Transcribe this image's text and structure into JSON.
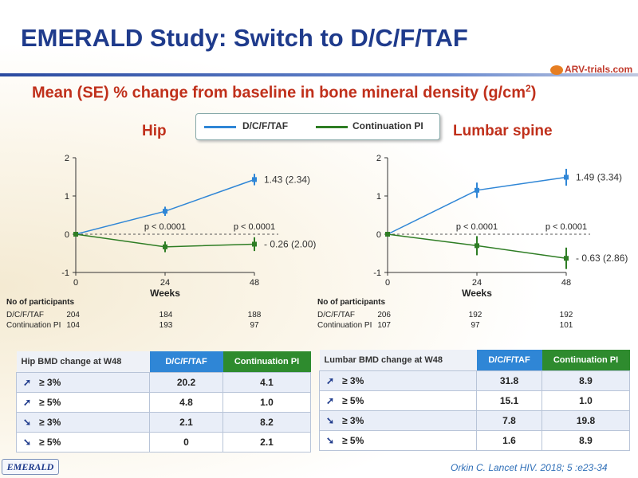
{
  "title": "EMERALD Study: Switch to D/C/F/TAF",
  "logo_text": "ARV-trials.com",
  "subtitle_main": "Mean (SE) % change from baseline in bone mineral density (g/cm",
  "subtitle_sup": "2",
  "subtitle_end": ")",
  "legend": {
    "series1": "D/C/F/TAF",
    "series2": "Continuation PI"
  },
  "colors": {
    "dcftaf": "#2f86d6",
    "pi": "#2e7d24",
    "accent": "#c0301b",
    "title": "#1f3b8c"
  },
  "chart_data": [
    {
      "type": "line",
      "title": "Hip",
      "xlabel": "Weeks",
      "x": [
        0,
        24,
        48
      ],
      "ylim": [
        -1,
        2
      ],
      "yticks": [
        "2",
        "1",
        "0",
        "-1"
      ],
      "xticks": [
        "0",
        "24",
        "48"
      ],
      "series": [
        {
          "name": "D/C/F/TAF",
          "values": [
            0,
            0.6,
            1.43
          ],
          "se": [
            0,
            0.12,
            0.15
          ],
          "end_label": "1.43 (2.34)"
        },
        {
          "name": "Continuation PI",
          "values": [
            0,
            -0.33,
            -0.26
          ],
          "se": [
            0,
            0.14,
            0.18
          ],
          "end_label": "- 0.26 (2.00)"
        }
      ],
      "pvalues": [
        {
          "label": "p < 0.0001",
          "week": 24
        },
        {
          "label": "p < 0.0001",
          "week": 48
        }
      ],
      "participants_title": "No of participants",
      "participants": [
        {
          "label": "D/C/F/TAF",
          "values": [
            "204",
            "184",
            "188"
          ]
        },
        {
          "label": "Continuation PI",
          "values": [
            "104",
            "193",
            "97"
          ]
        }
      ]
    },
    {
      "type": "line",
      "title": "Lumbar spine",
      "xlabel": "Weeks",
      "x": [
        0,
        24,
        48
      ],
      "ylim": [
        -1,
        2
      ],
      "yticks": [
        "2",
        "1",
        "0",
        "-1"
      ],
      "xticks": [
        "0",
        "24",
        "48"
      ],
      "series": [
        {
          "name": "D/C/F/TAF",
          "values": [
            0,
            1.15,
            1.49
          ],
          "se": [
            0,
            0.2,
            0.22
          ],
          "end_label": "1.49 (3.34)"
        },
        {
          "name": "Continuation PI",
          "values": [
            0,
            -0.3,
            -0.63
          ],
          "se": [
            0,
            0.25,
            0.28
          ],
          "end_label": "- 0.63 (2.86)"
        }
      ],
      "pvalues": [
        {
          "label": "p < 0.0001",
          "week": 24
        },
        {
          "label": "p < 0.0001",
          "week": 48
        }
      ],
      "participants_title": "No of participants",
      "participants": [
        {
          "label": "D/C/F/TAF",
          "values": [
            "206",
            "192",
            "192"
          ]
        },
        {
          "label": "Continuation PI",
          "values": [
            "107",
            "97",
            "101"
          ]
        }
      ]
    }
  ],
  "hip_table": {
    "headers": [
      "Hip BMD change at W48",
      "D/C/F/TAF",
      "Continuation PI"
    ],
    "rows": [
      {
        "arrow": "up",
        "label": "≥ 3%",
        "a": "20.2",
        "b": "4.1"
      },
      {
        "arrow": "up",
        "label": "≥ 5%",
        "a": "4.8",
        "b": "1.0"
      },
      {
        "arrow": "down",
        "label": "≥ 3%",
        "a": "2.1",
        "b": "8.2"
      },
      {
        "arrow": "down",
        "label": "≥ 5%",
        "a": "0",
        "b": "2.1"
      }
    ]
  },
  "lumbar_table": {
    "headers": [
      "Lumbar BMD change at W48",
      "D/C/F/TAF",
      "Continuation PI"
    ],
    "rows": [
      {
        "arrow": "up",
        "label": "≥ 3%",
        "a": "31.8",
        "b": "8.9"
      },
      {
        "arrow": "up",
        "label": "≥ 5%",
        "a": "15.1",
        "b": "1.0"
      },
      {
        "arrow": "down",
        "label": "≥ 3%",
        "a": "7.8",
        "b": "19.8"
      },
      {
        "arrow": "down",
        "label": "≥ 5%",
        "a": "1.6",
        "b": "8.9"
      }
    ]
  },
  "footer": {
    "badge": "EMERALD",
    "citation": "Orkin C. Lancet HIV. 2018; 5 :e23-34"
  }
}
